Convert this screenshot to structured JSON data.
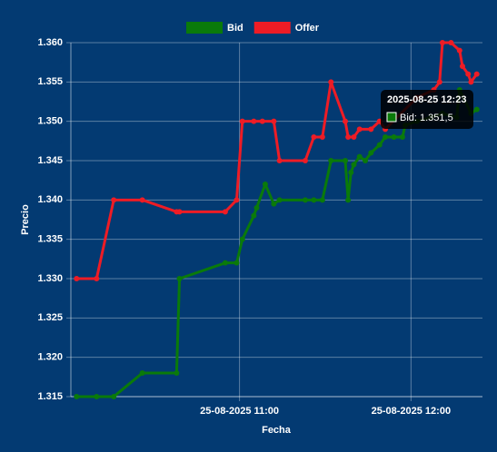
{
  "chart_data": {
    "type": "line",
    "x_label": "Fecha",
    "y_label": "Precio",
    "xlim": [
      "2025-08-25 10:01",
      "2025-08-25 12:25"
    ],
    "xticks": [
      {
        "value": "2025-08-25 11:00",
        "label": "25-08-2025 11:00"
      },
      {
        "value": "2025-08-25 12:00",
        "label": "25-08-2025 12:00"
      }
    ],
    "ylim": [
      1.315,
      1.36
    ],
    "yticks": [
      1.315,
      {
        "value": 1.32,
        "label": "1.320"
      },
      1.325,
      {
        "value": 1.33,
        "label": "1.330"
      },
      1.335,
      {
        "value": 1.34,
        "label": "1.340"
      },
      1.345,
      {
        "value": 1.35,
        "label": "1.350"
      },
      1.355,
      {
        "value": 1.36,
        "label": "1.360"
      }
    ],
    "grid": true,
    "legend": "top",
    "series": [
      {
        "name": "Bid",
        "color": "#0a7a0a",
        "x": [
          "2025-08-25 10:03",
          "2025-08-25 10:10",
          "2025-08-25 10:16",
          "2025-08-25 10:26",
          "2025-08-25 10:38",
          "2025-08-25 10:39",
          "2025-08-25 10:55",
          "2025-08-25 10:59",
          "2025-08-25 11:01",
          "2025-08-25 11:05",
          "2025-08-25 11:06",
          "2025-08-25 11:09",
          "2025-08-25 11:12",
          "2025-08-25 11:14",
          "2025-08-25 11:23",
          "2025-08-25 11:26",
          "2025-08-25 11:29",
          "2025-08-25 11:32",
          "2025-08-25 11:37",
          "2025-08-25 11:38",
          "2025-08-25 11:39",
          "2025-08-25 11:40",
          "2025-08-25 11:42",
          "2025-08-25 11:44",
          "2025-08-25 11:46",
          "2025-08-25 11:49",
          "2025-08-25 11:51",
          "2025-08-25 11:54",
          "2025-08-25 11:57",
          "2025-08-25 11:58",
          "2025-08-25 12:02",
          "2025-08-25 12:07",
          "2025-08-25 12:11",
          "2025-08-25 12:16",
          "2025-08-25 12:17",
          "2025-08-25 12:21",
          "2025-08-25 12:23"
        ],
        "values": [
          1.315,
          1.315,
          1.315,
          1.318,
          1.318,
          1.33,
          1.332,
          1.332,
          1.335,
          1.338,
          1.339,
          1.342,
          1.3395,
          1.34,
          1.34,
          1.34,
          1.34,
          1.345,
          1.345,
          1.34,
          1.3435,
          1.3445,
          1.3455,
          1.345,
          1.346,
          1.347,
          1.348,
          1.348,
          1.348,
          1.3495,
          1.35,
          1.3505,
          1.351,
          1.3505,
          1.354,
          1.351,
          1.3515
        ]
      },
      {
        "name": "Offer",
        "color": "#ee1c25",
        "x": [
          "2025-08-25 10:03",
          "2025-08-25 10:10",
          "2025-08-25 10:16",
          "2025-08-25 10:26",
          "2025-08-25 10:38",
          "2025-08-25 10:39",
          "2025-08-25 10:55",
          "2025-08-25 10:59",
          "2025-08-25 11:01",
          "2025-08-25 11:05",
          "2025-08-25 11:08",
          "2025-08-25 11:12",
          "2025-08-25 11:14",
          "2025-08-25 11:23",
          "2025-08-25 11:26",
          "2025-08-25 11:29",
          "2025-08-25 11:32",
          "2025-08-25 11:37",
          "2025-08-25 11:38",
          "2025-08-25 11:40",
          "2025-08-25 11:42",
          "2025-08-25 11:46",
          "2025-08-25 11:49",
          "2025-08-25 11:51",
          "2025-08-25 12:02",
          "2025-08-25 12:08",
          "2025-08-25 12:10",
          "2025-08-25 12:11",
          "2025-08-25 12:14",
          "2025-08-25 12:17",
          "2025-08-25 12:18",
          "2025-08-25 12:20",
          "2025-08-25 12:21",
          "2025-08-25 12:23"
        ],
        "values": [
          1.33,
          1.33,
          1.34,
          1.34,
          1.3385,
          1.3385,
          1.3385,
          1.34,
          1.35,
          1.35,
          1.35,
          1.35,
          1.345,
          1.345,
          1.348,
          1.348,
          1.355,
          1.35,
          1.348,
          1.348,
          1.349,
          1.349,
          1.35,
          1.349,
          1.353,
          1.354,
          1.355,
          1.36,
          1.36,
          1.359,
          1.357,
          1.356,
          1.355,
          1.356
        ]
      }
    ],
    "tooltip": {
      "title": "2025-08-25 12:23",
      "label": "Bid: 1.351,5"
    }
  }
}
